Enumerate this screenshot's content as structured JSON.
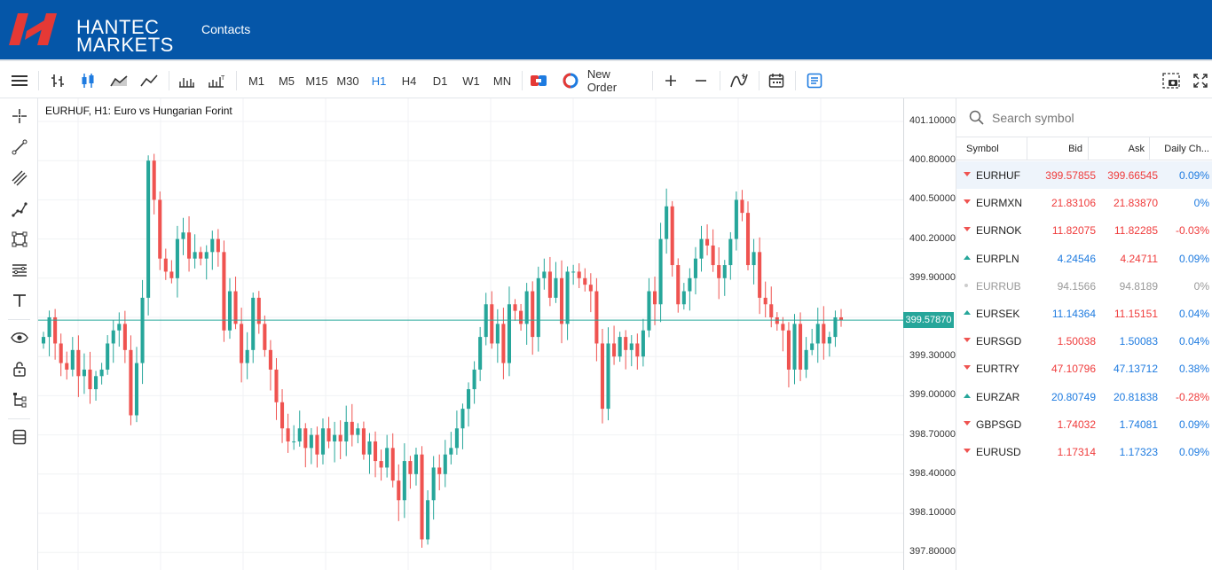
{
  "header": {
    "logo_line1": "HANTEC",
    "logo_line2": "MARKETS",
    "contacts_label": "Contacts",
    "brand_color": "#0556a8"
  },
  "toolbar": {
    "timeframes": [
      "M1",
      "M5",
      "M15",
      "M30",
      "H1",
      "H4",
      "D1",
      "W1",
      "MN"
    ],
    "active_timeframe": "H1",
    "new_order_label": "New Order",
    "icons": [
      "menu-icon",
      "bar-chart-icon",
      "candlestick-icon",
      "area-chart-icon",
      "line-chart-icon",
      "volume-icon",
      "tick-volume-icon",
      "one-click-trading-icon",
      "new-order-icon",
      "zoom-in-icon",
      "zoom-out-icon",
      "indicators-icon",
      "calendar-icon",
      "notes-icon",
      "screenshot-icon",
      "fullscreen-icon"
    ]
  },
  "leftbar": {
    "icons": [
      "crosshair-icon",
      "trend-line-icon",
      "parallel-channel-icon",
      "path-icon",
      "rectangle-icon",
      "fibonacci-icon",
      "text-icon",
      "eye-icon",
      "lock-icon",
      "object-tree-icon",
      "layers-icon"
    ]
  },
  "chart": {
    "title": "EURHUF, H1: Euro vs Hungarian Forint",
    "current_price": "399.57870",
    "y_labels": [
      "401.10000",
      "400.80000",
      "400.50000",
      "400.20000",
      "399.90000",
      "399.30000",
      "399.00000",
      "398.70000",
      "398.40000",
      "398.10000",
      "397.80000"
    ]
  },
  "chart_data": {
    "type": "candlestick",
    "symbol": "EURHUF",
    "timeframe": "H1",
    "title": "EURHUF, H1: Euro vs Hungarian Forint",
    "ylim": [
      397.7,
      401.2
    ],
    "current_price": 399.5787,
    "up_color": "#26a69a",
    "down_color": "#ef5350",
    "closes": [
      399.45,
      399.6,
      399.4,
      399.25,
      399.2,
      399.35,
      399.15,
      399.2,
      399.05,
      399.15,
      399.2,
      399.4,
      399.5,
      399.55,
      399.35,
      398.85,
      399.25,
      399.75,
      400.8,
      400.5,
      400.05,
      399.95,
      399.9,
      400.2,
      400.25,
      400.05,
      400.1,
      400.05,
      400.1,
      400.2,
      400.1,
      399.5,
      399.8,
      399.55,
      399.25,
      399.35,
      399.75,
      399.55,
      399.35,
      399.2,
      398.95,
      398.75,
      398.65,
      398.65,
      398.75,
      398.6,
      398.7,
      398.55,
      398.75,
      398.65,
      398.7,
      398.65,
      398.8,
      398.7,
      398.75,
      398.55,
      398.65,
      398.5,
      398.45,
      398.6,
      398.35,
      398.2,
      398.5,
      398.4,
      398.55,
      397.9,
      398.2,
      398.45,
      398.4,
      398.55,
      398.6,
      398.75,
      398.9,
      399.05,
      399.2,
      399.45,
      399.7,
      399.4,
      399.55,
      399.25,
      399.7,
      399.65,
      399.55,
      399.8,
      399.45,
      399.9,
      399.95,
      399.75,
      399.9,
      399.55,
      399.95,
      399.95,
      399.9,
      399.85,
      399.8,
      399.4,
      398.9,
      399.4,
      399.3,
      399.45,
      399.35,
      399.4,
      399.3,
      399.5,
      399.8,
      399.7,
      400.2,
      400.45,
      400.0,
      399.7,
      399.8,
      399.9,
      400.05,
      400.2,
      400.15,
      400.0,
      399.9,
      400.0,
      400.2,
      400.5,
      400.4,
      400.0,
      400.1,
      399.75,
      399.7,
      399.6,
      399.55,
      399.5,
      399.2,
      399.55,
      399.2,
      399.35,
      399.4,
      399.55,
      399.4,
      399.45,
      399.6,
      399.58
    ]
  },
  "watchlist": {
    "search_placeholder": "Search symbol",
    "columns": [
      "Symbol",
      "Bid",
      "Ask",
      "Daily Ch..."
    ],
    "rows": [
      {
        "symbol": "EURHUF",
        "bid": "399.57855",
        "ask": "399.66545",
        "change": "0.09%",
        "dir": "down",
        "bid_color": "red",
        "ask_color": "red",
        "change_color": "blue"
      },
      {
        "symbol": "EURMXN",
        "bid": "21.83106",
        "ask": "21.83870",
        "change": "0%",
        "dir": "down",
        "bid_color": "red",
        "ask_color": "red",
        "change_color": "blue"
      },
      {
        "symbol": "EURNOK",
        "bid": "11.82075",
        "ask": "11.82285",
        "change": "-0.03%",
        "dir": "down",
        "bid_color": "red",
        "ask_color": "red",
        "change_color": "red"
      },
      {
        "symbol": "EURPLN",
        "bid": "4.24546",
        "ask": "4.24711",
        "change": "0.09%",
        "dir": "up",
        "bid_color": "blue",
        "ask_color": "red",
        "change_color": "blue"
      },
      {
        "symbol": "EURRUB",
        "bid": "94.1566",
        "ask": "94.8189",
        "change": "0%",
        "dir": "none",
        "bid_color": "grey",
        "ask_color": "grey",
        "change_color": "grey"
      },
      {
        "symbol": "EURSEK",
        "bid": "11.14364",
        "ask": "11.15151",
        "change": "0.04%",
        "dir": "up",
        "bid_color": "blue",
        "ask_color": "red",
        "change_color": "blue"
      },
      {
        "symbol": "EURSGD",
        "bid": "1.50038",
        "ask": "1.50083",
        "change": "0.04%",
        "dir": "down",
        "bid_color": "red",
        "ask_color": "blue",
        "change_color": "blue"
      },
      {
        "symbol": "EURTRY",
        "bid": "47.10796",
        "ask": "47.13712",
        "change": "0.38%",
        "dir": "down",
        "bid_color": "red",
        "ask_color": "blue",
        "change_color": "blue"
      },
      {
        "symbol": "EURZAR",
        "bid": "20.80749",
        "ask": "20.81838",
        "change": "-0.28%",
        "dir": "up",
        "bid_color": "blue",
        "ask_color": "blue",
        "change_color": "red"
      },
      {
        "symbol": "GBPSGD",
        "bid": "1.74032",
        "ask": "1.74081",
        "change": "0.09%",
        "dir": "down",
        "bid_color": "red",
        "ask_color": "blue",
        "change_color": "blue"
      },
      {
        "symbol": "EURUSD",
        "bid": "1.17314",
        "ask": "1.17323",
        "change": "0.09%",
        "dir": "down",
        "bid_color": "red",
        "ask_color": "blue",
        "change_color": "blue"
      }
    ]
  }
}
